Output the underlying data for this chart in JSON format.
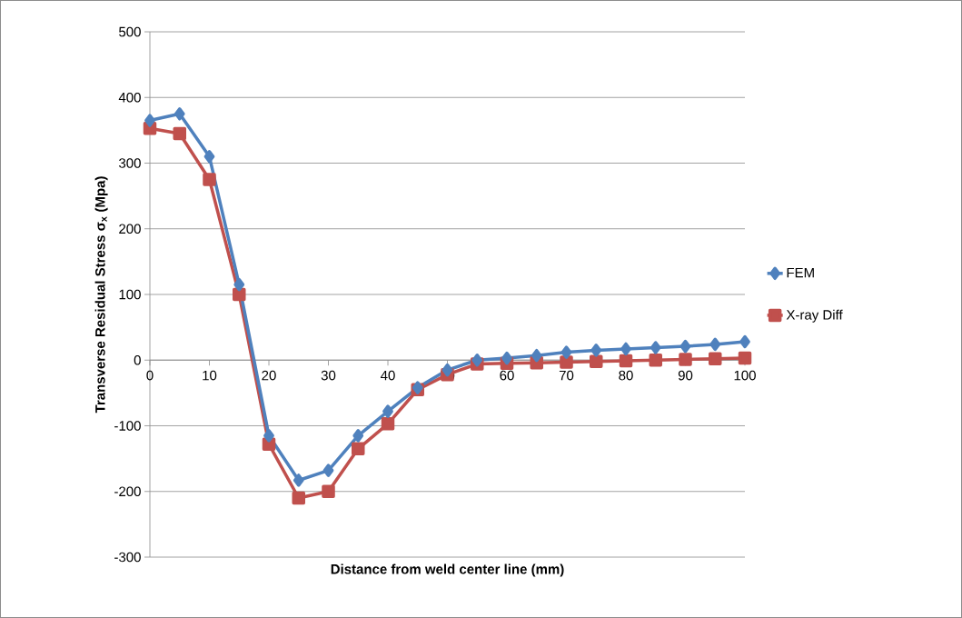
{
  "chart_data": {
    "type": "line",
    "xlabel": "Distance from weld center line (mm)",
    "ylabel": "Transverse Residual Stress σ$_{x}$  (Mpa)",
    "x": [
      0,
      5,
      10,
      15,
      20,
      25,
      30,
      35,
      40,
      45,
      50,
      55,
      60,
      65,
      70,
      75,
      80,
      85,
      90,
      95,
      100
    ],
    "series": [
      {
        "name": "FEM",
        "color": "#4f81bd",
        "marker": "diamond",
        "values": [
          365,
          375,
          310,
          115,
          -115,
          -183,
          -168,
          -115,
          -78,
          -42,
          -15,
          0,
          3,
          7,
          12,
          15,
          17,
          19,
          21,
          24,
          28
        ]
      },
      {
        "name": "X-ray Diff",
        "color": "#c0504d",
        "marker": "square",
        "values": [
          353,
          345,
          275,
          100,
          -128,
          -210,
          -200,
          -135,
          -97,
          -45,
          -22,
          -6,
          -5,
          -4,
          -3,
          -2,
          -1,
          0,
          1,
          2,
          3
        ]
      }
    ],
    "xlim": [
      0,
      100
    ],
    "xticks": [
      0,
      10,
      20,
      30,
      40,
      50,
      60,
      70,
      80,
      90,
      100
    ],
    "ylim": [
      -300,
      500
    ],
    "yticks": [
      -300,
      -200,
      -100,
      0,
      100,
      200,
      300,
      400,
      500
    ],
    "grid": "y",
    "legend": "right",
    "line_style": "solid"
  }
}
